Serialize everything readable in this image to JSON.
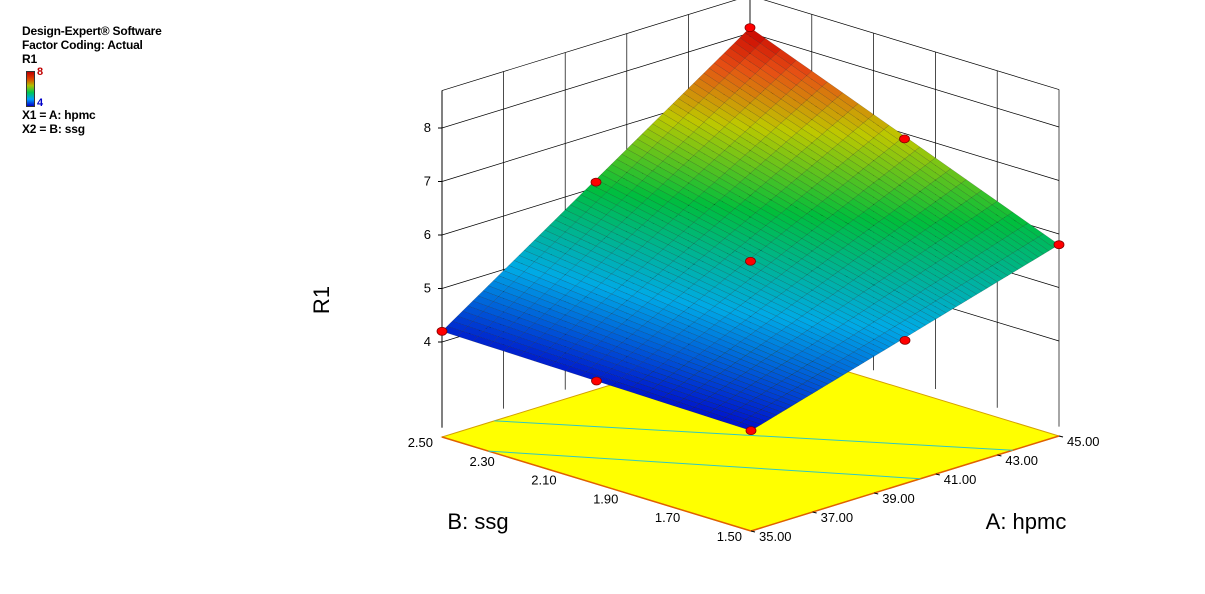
{
  "header": {
    "software": "Design-Expert® Software",
    "coding": "Factor Coding: Actual",
    "response": "R1",
    "x1": "X1 = A: hpmc",
    "x2": "X2 = B: ssg"
  },
  "colorbar": {
    "max_label": "8",
    "min_label": "4",
    "colors": [
      "#0000c8",
      "#00a0ff",
      "#00c850",
      "#b0c000",
      "#e04000",
      "#c00000"
    ]
  },
  "chart_data": {
    "type": "surface3d",
    "zlabel": "R1",
    "xlabel": "A: hpmc",
    "ylabel": "B: ssg",
    "xlim": [
      35,
      45
    ],
    "ylim": [
      1.5,
      2.5
    ],
    "zlim": [
      4,
      8
    ],
    "x_ticks": [
      "35.00",
      "37.00",
      "39.00",
      "41.00",
      "43.00",
      "45.00"
    ],
    "y_ticks": [
      "1.50",
      "1.70",
      "1.90",
      "2.10",
      "2.30",
      "2.50"
    ],
    "z_ticks": [
      "4",
      "5",
      "6",
      "7",
      "8"
    ],
    "surface_corners": [
      {
        "hpmc": 35,
        "ssg": 1.5,
        "R1": 4.1
      },
      {
        "hpmc": 45,
        "ssg": 1.5,
        "R1": 5.8
      },
      {
        "hpmc": 35,
        "ssg": 2.5,
        "R1": 4.2
      },
      {
        "hpmc": 45,
        "ssg": 2.5,
        "R1": 8.1
      }
    ],
    "design_points": [
      {
        "hpmc": 35,
        "ssg": 1.5,
        "R1": 4.1
      },
      {
        "hpmc": 40,
        "ssg": 1.5,
        "R1": 4.9
      },
      {
        "hpmc": 45,
        "ssg": 1.5,
        "R1": 5.8
      },
      {
        "hpmc": 35,
        "ssg": 2.0,
        "R1": 4.15
      },
      {
        "hpmc": 40,
        "ssg": 2.0,
        "R1": 5.5
      },
      {
        "hpmc": 45,
        "ssg": 2.0,
        "R1": 6.9
      },
      {
        "hpmc": 35,
        "ssg": 2.5,
        "R1": 4.2
      },
      {
        "hpmc": 40,
        "ssg": 2.5,
        "R1": 6.1
      },
      {
        "hpmc": 45,
        "ssg": 2.5,
        "R1": 8.1
      }
    ],
    "floor_color": "#ffff00",
    "point_color": "#ff0000"
  }
}
